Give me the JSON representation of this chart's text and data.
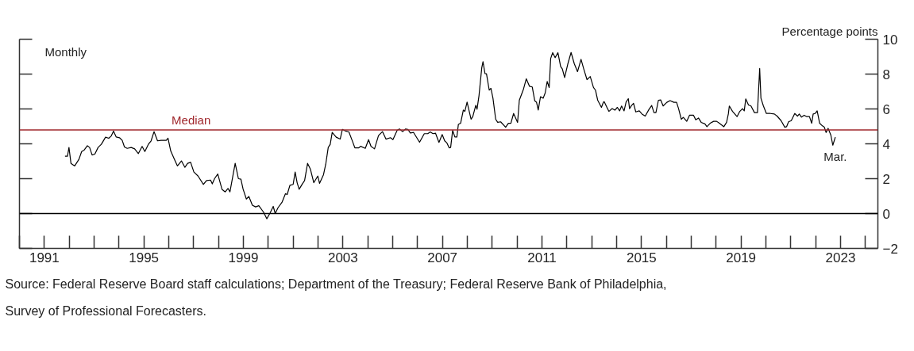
{
  "chart_data": {
    "type": "line",
    "ylabel": "Percentage points",
    "x": [
      1991.83,
      1991.93,
      1991.99,
      1992.07,
      1992.22,
      1992.39,
      1992.5,
      1992.6,
      1992.73,
      1992.82,
      1992.92,
      1993.03,
      1993.16,
      1993.29,
      1993.46,
      1993.59,
      1993.69,
      1993.78,
      1993.89,
      1994.02,
      1994.13,
      1994.22,
      1994.33,
      1994.49,
      1994.63,
      1994.78,
      1994.93,
      1995.04,
      1995.18,
      1995.29,
      1995.41,
      1995.55,
      1995.69,
      1995.9,
      1995.97,
      1996.08,
      1996.22,
      1996.35,
      1996.51,
      1996.65,
      1996.76,
      1996.88,
      1997.01,
      1997.18,
      1997.39,
      1997.52,
      1997.68,
      1997.75,
      1997.84,
      1997.97,
      1998.14,
      1998.27,
      1998.38,
      1998.46,
      1998.67,
      1998.8,
      1998.9,
      1998.99,
      1999.12,
      1999.22,
      1999.36,
      1999.49,
      1999.62,
      1999.81,
      1999.94,
      2000.07,
      2000.2,
      2000.28,
      2000.39,
      2000.55,
      2000.69,
      2000.76,
      2000.87,
      2001.0,
      2001.08,
      2001.16,
      2001.24,
      2001.37,
      2001.46,
      2001.58,
      2001.69,
      2001.83,
      2001.99,
      2002.06,
      2002.22,
      2002.31,
      2002.41,
      2002.49,
      2002.57,
      2002.73,
      2002.89,
      2002.98,
      2003.11,
      2003.24,
      2003.37,
      2003.48,
      2003.64,
      2003.71,
      2003.9,
      2004.03,
      2004.13,
      2004.27,
      2004.43,
      2004.59,
      2004.73,
      2004.91,
      2005.01,
      2005.18,
      2005.27,
      2005.4,
      2005.52,
      2005.61,
      2005.71,
      2005.84,
      2006.08,
      2006.27,
      2006.41,
      2006.51,
      2006.62,
      2006.72,
      2006.86,
      2006.99,
      2007.09,
      2007.18,
      2007.27,
      2007.33,
      2007.41,
      2007.5,
      2007.58,
      2007.64,
      2007.73,
      2007.84,
      2007.9,
      2007.99,
      2008.15,
      2008.22,
      2008.34,
      2008.39,
      2008.47,
      2008.58,
      2008.63,
      2008.71,
      2008.77,
      2008.88,
      2008.95,
      2009.03,
      2009.14,
      2009.22,
      2009.34,
      2009.54,
      2009.65,
      2009.75,
      2009.86,
      2010.02,
      2010.09,
      2010.26,
      2010.37,
      2010.5,
      2010.61,
      2010.71,
      2010.78,
      2010.85,
      2010.94,
      2011.05,
      2011.13,
      2011.21,
      2011.29,
      2011.35,
      2011.43,
      2011.53,
      2011.64,
      2011.75,
      2011.82,
      2011.91,
      2012.04,
      2012.17,
      2012.3,
      2012.43,
      2012.57,
      2012.68,
      2012.81,
      2012.94,
      2013.07,
      2013.15,
      2013.24,
      2013.39,
      2013.47,
      2013.5,
      2013.61,
      2013.69,
      2013.82,
      2013.93,
      2014.03,
      2014.12,
      2014.2,
      2014.3,
      2014.38,
      2014.47,
      2014.52,
      2014.6,
      2014.68,
      2014.77,
      2014.91,
      2015.02,
      2015.15,
      2015.3,
      2015.41,
      2015.5,
      2015.58,
      2015.68,
      2015.77,
      2015.87,
      2016.02,
      2016.15,
      2016.3,
      2016.41,
      2016.49,
      2016.6,
      2016.68,
      2016.82,
      2016.93,
      2017.09,
      2017.18,
      2017.29,
      2017.4,
      2017.55,
      2017.63,
      2017.76,
      2017.9,
      2018.02,
      2018.13,
      2018.31,
      2018.42,
      2018.49,
      2018.53,
      2018.66,
      2018.84,
      2018.95,
      2019.06,
      2019.13,
      2019.19,
      2019.3,
      2019.4,
      2019.54,
      2019.66,
      2019.75,
      2019.8,
      2019.9,
      2020.02,
      2020.18,
      2020.34,
      2020.45,
      2020.61,
      2020.76,
      2020.83,
      2020.91,
      2021.02,
      2021.16,
      2021.27,
      2021.34,
      2021.43,
      2021.54,
      2021.64,
      2021.75,
      2021.84,
      2021.9,
      2021.98,
      2022.06,
      2022.16,
      2022.27,
      2022.35,
      2022.42,
      2022.5,
      2022.61,
      2022.69,
      2022.79
    ],
    "series": [
      {
        "color": "#000000",
        "values": [
          3.29,
          3.29,
          3.79,
          2.88,
          2.73,
          3.11,
          3.56,
          3.64,
          3.89,
          3.79,
          3.36,
          3.41,
          3.79,
          3.97,
          4.38,
          4.32,
          4.45,
          4.73,
          4.39,
          4.35,
          4.2,
          3.82,
          3.74,
          3.79,
          3.71,
          3.44,
          3.85,
          3.56,
          3.97,
          4.17,
          4.7,
          4.17,
          4.2,
          4.2,
          4.32,
          3.59,
          3.14,
          2.73,
          3.02,
          2.65,
          2.88,
          2.94,
          2.38,
          2.15,
          1.67,
          1.89,
          1.92,
          1.7,
          2.0,
          2.27,
          1.39,
          1.24,
          1.44,
          1.24,
          2.88,
          2.0,
          1.97,
          1.39,
          0.83,
          0.98,
          0.48,
          0.38,
          0.45,
          0.08,
          -0.3,
          0.02,
          0.41,
          0.0,
          0.33,
          0.64,
          1.14,
          1.09,
          1.62,
          1.67,
          2.38,
          1.77,
          1.39,
          1.7,
          1.89,
          2.88,
          2.56,
          1.77,
          2.15,
          1.73,
          2.23,
          2.83,
          3.79,
          3.97,
          4.65,
          4.38,
          4.27,
          4.83,
          4.73,
          4.68,
          4.2,
          3.77,
          3.77,
          3.86,
          3.74,
          4.24,
          3.85,
          3.71,
          4.47,
          4.7,
          4.27,
          4.35,
          4.24,
          4.77,
          4.85,
          4.7,
          4.85,
          4.83,
          4.62,
          4.65,
          4.09,
          4.58,
          4.58,
          4.68,
          4.58,
          4.61,
          4.08,
          4.53,
          4.17,
          4.05,
          3.77,
          3.79,
          4.77,
          4.39,
          4.39,
          5.11,
          5.18,
          5.94,
          5.86,
          6.39,
          5.41,
          5.56,
          6.21,
          5.98,
          6.77,
          8.36,
          8.71,
          8.03,
          8.02,
          7.08,
          7.18,
          6.62,
          5.41,
          5.23,
          5.26,
          4.95,
          5.18,
          5.18,
          5.74,
          5.23,
          6.5,
          7.15,
          7.73,
          7.3,
          7.26,
          6.47,
          6.39,
          5.94,
          6.7,
          6.62,
          6.92,
          7.58,
          7.23,
          8.89,
          9.23,
          8.94,
          9.23,
          8.44,
          8.29,
          7.8,
          8.59,
          9.24,
          8.59,
          8.14,
          8.85,
          8.29,
          7.68,
          7.86,
          7.23,
          7.08,
          6.5,
          6.09,
          6.39,
          6.42,
          6.09,
          5.86,
          6.02,
          5.93,
          6.09,
          5.89,
          6.17,
          5.89,
          6.39,
          6.59,
          6.02,
          6.2,
          6.32,
          5.83,
          5.89,
          5.71,
          5.59,
          5.97,
          6.2,
          5.79,
          5.79,
          6.5,
          6.52,
          6.17,
          6.38,
          6.48,
          6.38,
          6.38,
          6.02,
          5.41,
          5.52,
          5.29,
          5.64,
          5.64,
          5.38,
          5.48,
          5.23,
          5.14,
          4.98,
          5.18,
          5.29,
          5.29,
          5.18,
          4.98,
          5.23,
          5.71,
          6.17,
          5.86,
          5.56,
          5.86,
          6.02,
          5.89,
          6.58,
          6.23,
          6.17,
          5.79,
          5.79,
          8.32,
          6.62,
          6.17,
          5.74,
          5.74,
          5.71,
          5.59,
          5.33,
          4.95,
          4.98,
          5.26,
          5.33,
          5.74,
          5.59,
          5.71,
          5.53,
          5.64,
          5.56,
          5.56,
          5.18,
          5.71,
          5.74,
          5.89,
          5.18,
          5.03,
          4.95,
          4.65,
          4.89,
          4.5,
          3.92,
          4.38
        ]
      }
    ],
    "xlim": [
      1990.0,
      2024.5
    ],
    "xticks": [
      {
        "value": 1990,
        "label": null
      },
      {
        "value": 1991,
        "label": "1991"
      },
      {
        "value": 1992,
        "label": null
      },
      {
        "value": 1993,
        "label": null
      },
      {
        "value": 1994,
        "label": null
      },
      {
        "value": 1995,
        "label": "1995"
      },
      {
        "value": 1996,
        "label": null
      },
      {
        "value": 1997,
        "label": null
      },
      {
        "value": 1998,
        "label": null
      },
      {
        "value": 1999,
        "label": "1999"
      },
      {
        "value": 2000,
        "label": null
      },
      {
        "value": 2001,
        "label": null
      },
      {
        "value": 2002,
        "label": null
      },
      {
        "value": 2003,
        "label": "2003"
      },
      {
        "value": 2004,
        "label": null
      },
      {
        "value": 2005,
        "label": null
      },
      {
        "value": 2006,
        "label": null
      },
      {
        "value": 2007,
        "label": "2007"
      },
      {
        "value": 2008,
        "label": null
      },
      {
        "value": 2009,
        "label": null
      },
      {
        "value": 2010,
        "label": null
      },
      {
        "value": 2011,
        "label": "2011"
      },
      {
        "value": 2012,
        "label": null
      },
      {
        "value": 2013,
        "label": null
      },
      {
        "value": 2014,
        "label": null
      },
      {
        "value": 2015,
        "label": "2015"
      },
      {
        "value": 2016,
        "label": null
      },
      {
        "value": 2017,
        "label": null
      },
      {
        "value": 2018,
        "label": null
      },
      {
        "value": 2019,
        "label": "2019"
      },
      {
        "value": 2020,
        "label": null
      },
      {
        "value": 2021,
        "label": null
      },
      {
        "value": 2022,
        "label": null
      },
      {
        "value": 2023,
        "label": "2023"
      },
      {
        "value": 2024,
        "label": null
      }
    ],
    "ylim": [
      -2,
      10
    ],
    "yticks": [
      {
        "value": -2,
        "label": "−2"
      },
      0,
      2,
      4,
      6,
      8,
      10
    ],
    "ref_lines": [
      {
        "axis": "y",
        "value": 4.8,
        "label": "Median",
        "color": "#a0282d"
      },
      {
        "axis": "y",
        "value": 0,
        "color": "#000000"
      }
    ],
    "annotations": [
      "Monthly",
      {
        "text": "Mar.",
        "x": 2022.79,
        "y": 4.38
      },
      "Source: Federal Reserve Board staff calculations; Department of the Treasury; Federal Reserve Bank of Philadelphia, Survey of Professional Forecasters."
    ],
    "grid": false
  }
}
